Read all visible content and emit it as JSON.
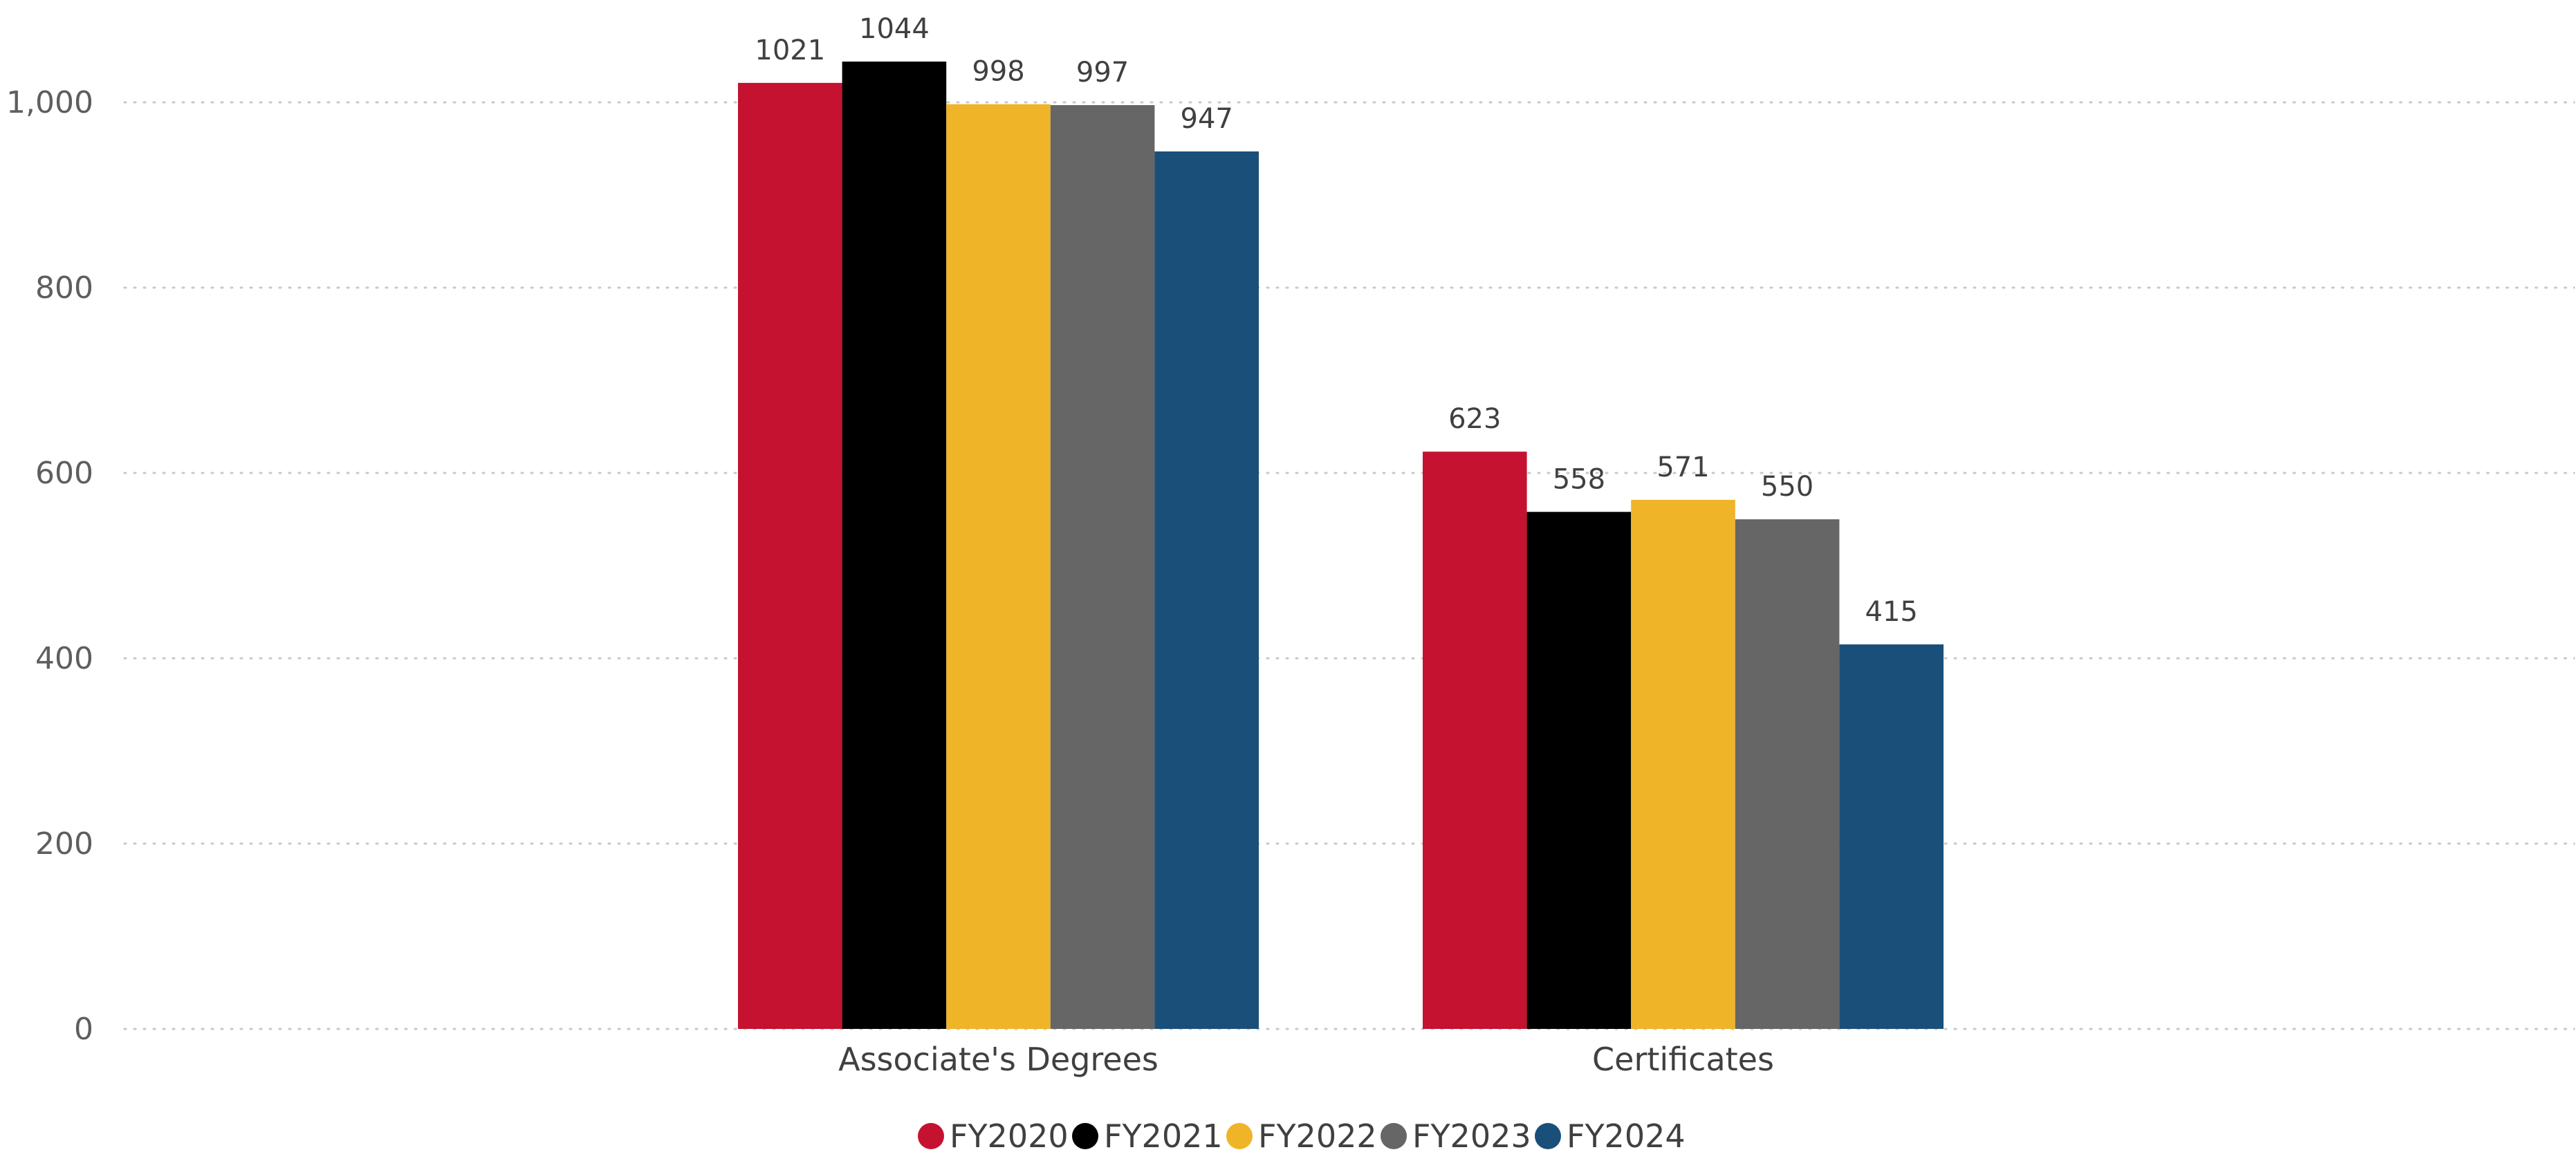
{
  "chart_data": {
    "type": "bar",
    "categories": [
      "Associate's Degrees",
      "Certificates"
    ],
    "series": [
      {
        "name": "FY2020",
        "color": "#c41230",
        "values": [
          1021,
          623
        ]
      },
      {
        "name": "FY2021",
        "color": "#000000",
        "values": [
          1044,
          558
        ]
      },
      {
        "name": "FY2022",
        "color": "#f0b429",
        "values": [
          998,
          571
        ]
      },
      {
        "name": "FY2023",
        "color": "#666666",
        "values": [
          997,
          550
        ]
      },
      {
        "name": "FY2024",
        "color": "#1a4f7a",
        "values": [
          947,
          415
        ]
      }
    ],
    "y_ticks": [
      "0",
      "200",
      "400",
      "600",
      "800",
      "1,000"
    ],
    "ylim": [
      0,
      1000
    ],
    "grid": true,
    "legend_position": "bottom-center",
    "title": "",
    "xlabel": "",
    "ylabel": ""
  }
}
